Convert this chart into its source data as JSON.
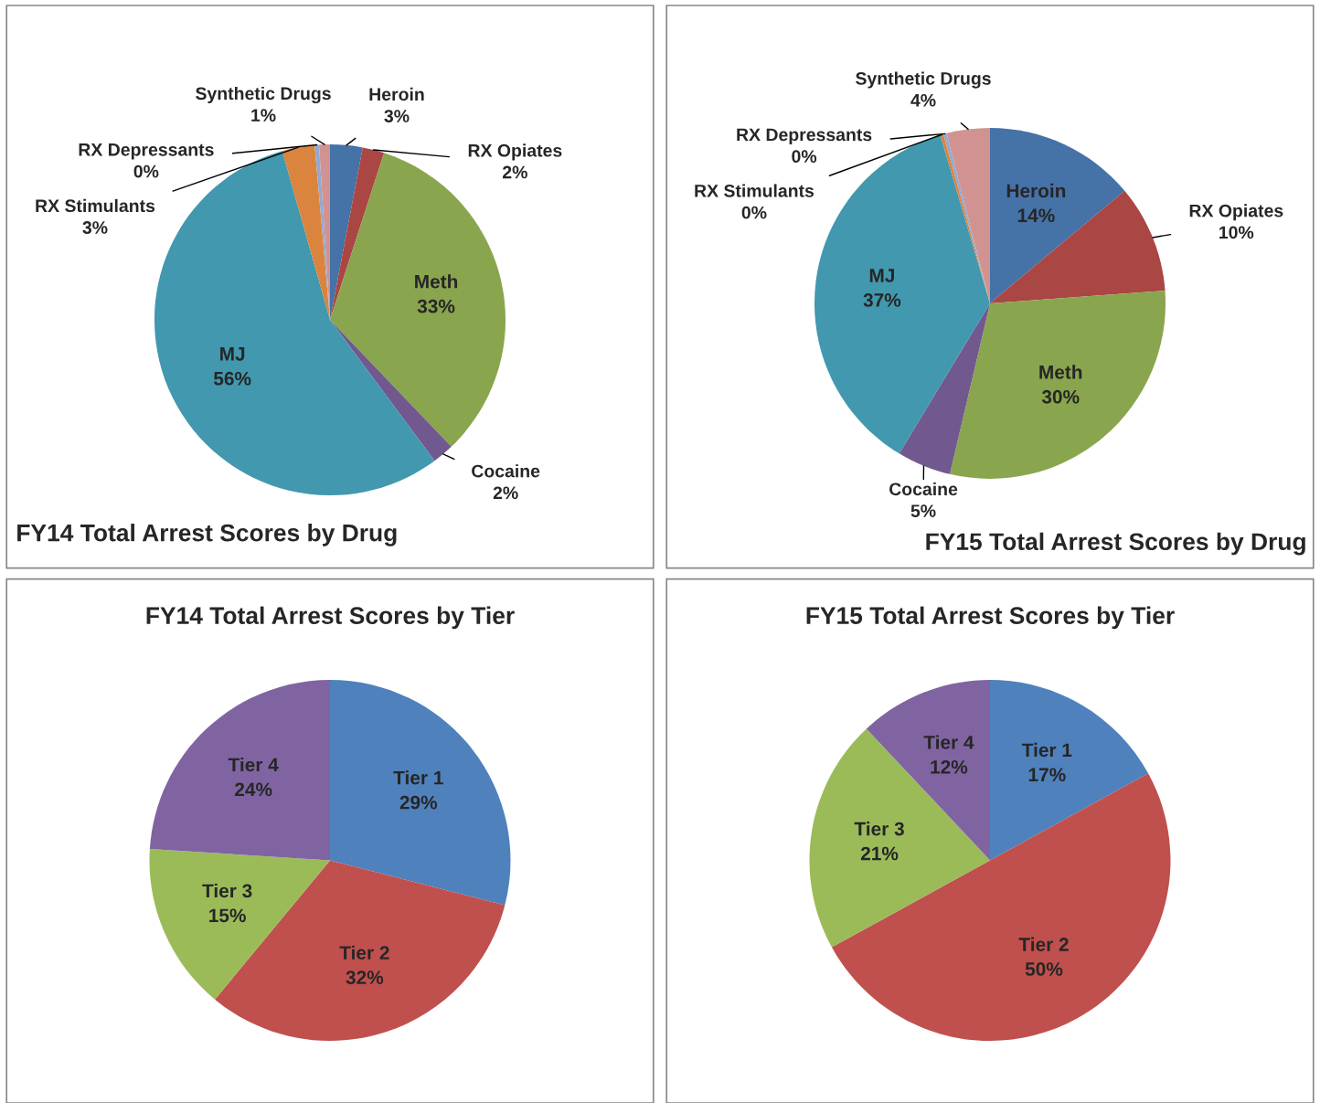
{
  "chart_data": [
    {
      "type": "pie",
      "title": "FY14 Total Arrest Scores by Drug",
      "categories": [
        "Heroin",
        "RX Opiates",
        "Meth",
        "Cocaine",
        "MJ",
        "RX Stimulants",
        "RX Depressants",
        "Synthetic Drugs"
      ],
      "values": [
        3,
        2,
        33,
        2,
        56,
        3,
        0.4,
        1
      ],
      "value_labels": [
        "3%",
        "2%",
        "33%",
        "2%",
        "56%",
        "3%",
        "0%",
        "1%"
      ],
      "colors": [
        "#4572a7",
        "#aa4643",
        "#89a54e",
        "#71588f",
        "#4198af",
        "#db843d",
        "#93a9cf",
        "#d19392"
      ]
    },
    {
      "type": "pie",
      "title": "FY15 Total Arrest Scores by Drug",
      "categories": [
        "Heroin",
        "RX Opiates",
        "Meth",
        "Cocaine",
        "MJ",
        "RX Stimulants",
        "RX Depressants",
        "Synthetic Drugs"
      ],
      "values": [
        14,
        10,
        30,
        5,
        37,
        0.3,
        0.3,
        4
      ],
      "value_labels": [
        "14%",
        "10%",
        "30%",
        "5%",
        "37%",
        "0%",
        "0%",
        "4%"
      ],
      "colors": [
        "#4572a7",
        "#aa4643",
        "#89a54e",
        "#71588f",
        "#4198af",
        "#db843d",
        "#93a9cf",
        "#d19392"
      ]
    },
    {
      "type": "pie",
      "title": "FY14 Total Arrest Scores by Tier",
      "categories": [
        "Tier 1",
        "Tier 2",
        "Tier 3",
        "Tier 4"
      ],
      "values": [
        29,
        32,
        15,
        24
      ],
      "value_labels": [
        "29%",
        "32%",
        "15%",
        "24%"
      ],
      "colors": [
        "#4f81bd",
        "#c0504d",
        "#9bbb59",
        "#8064a2"
      ]
    },
    {
      "type": "pie",
      "title": "FY15 Total Arrest Scores by Tier",
      "categories": [
        "Tier 1",
        "Tier 2",
        "Tier 3",
        "Tier 4"
      ],
      "values": [
        17,
        50,
        21,
        12
      ],
      "value_labels": [
        "17%",
        "50%",
        "21%",
        "12%"
      ],
      "colors": [
        "#4f81bd",
        "#c0504d",
        "#9bbb59",
        "#8064a2"
      ]
    }
  ]
}
